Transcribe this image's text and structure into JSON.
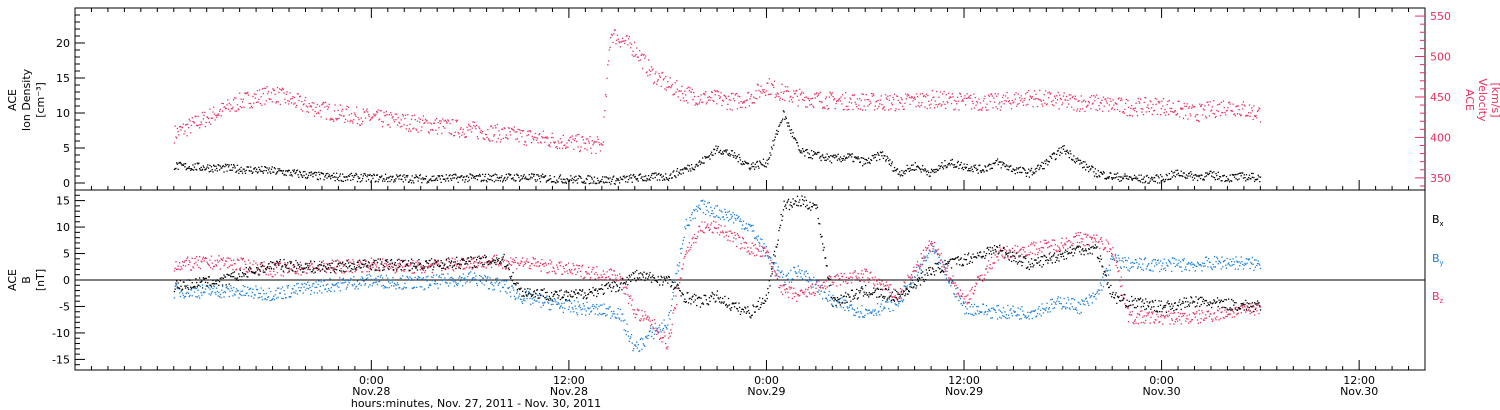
{
  "chart_data": [
    {
      "type": "scatter",
      "panel": "top",
      "ylabel_lines": [
        "ACE",
        "Ion Density",
        "[cm⁻³]"
      ],
      "ylim": [
        -1,
        25
      ],
      "yticks": [
        0,
        5,
        10,
        15,
        20
      ],
      "y2label_lines": [
        "ACE",
        "Velocity",
        "[km/s]"
      ],
      "y2lim": [
        335,
        560
      ],
      "y2ticks": [
        350,
        400,
        450,
        500,
        550
      ],
      "series": [
        {
          "name": "Ion Density",
          "axis": "left",
          "color": "#000000",
          "x": [
            0,
            6,
            12,
            18,
            24,
            30,
            36,
            42,
            48,
            54,
            56,
            60,
            64,
            66,
            68,
            70,
            72,
            74,
            76,
            78,
            80,
            82,
            84,
            86,
            88,
            90,
            92,
            94,
            96,
            98,
            100,
            102,
            104,
            106,
            108,
            110,
            112,
            114,
            116,
            118,
            120,
            122,
            124,
            126,
            128,
            130,
            132
          ],
          "y": [
            2.5,
            2.2,
            1.8,
            1.0,
            0.8,
            0.7,
            0.8,
            0.9,
            0.6,
            0.5,
            0.8,
            1.0,
            3.0,
            5.0,
            4.0,
            2.5,
            3.0,
            10.0,
            4.5,
            4.0,
            3.5,
            3.8,
            3.0,
            4.2,
            1.5,
            2.5,
            1.5,
            3.0,
            2.5,
            2.0,
            3.0,
            2.0,
            1.5,
            3.0,
            5.0,
            3.0,
            1.5,
            1.0,
            0.8,
            0.6,
            0.7,
            1.5,
            1.0,
            1.2,
            0.8,
            1.0,
            0.8
          ]
        },
        {
          "name": "Velocity",
          "axis": "right",
          "color": "#e8305e",
          "x": [
            0,
            4,
            8,
            12,
            16,
            20,
            24,
            28,
            32,
            36,
            40,
            44,
            48,
            52,
            53,
            56,
            58,
            60,
            62,
            64,
            66,
            68,
            70,
            72,
            74,
            76,
            78,
            80,
            84,
            88,
            92,
            96,
            100,
            104,
            108,
            112,
            116,
            120,
            124,
            128,
            132
          ],
          "y": [
            405,
            425,
            445,
            455,
            440,
            430,
            425,
            420,
            415,
            410,
            405,
            400,
            395,
            390,
            530,
            510,
            480,
            465,
            455,
            450,
            448,
            445,
            450,
            465,
            455,
            450,
            448,
            446,
            445,
            444,
            448,
            445,
            444,
            450,
            445,
            443,
            438,
            440,
            430,
            440,
            430
          ]
        }
      ]
    },
    {
      "type": "scatter",
      "panel": "bottom",
      "ylabel_lines": [
        "ACE",
        "B",
        "[nT]"
      ],
      "ylim": [
        -17,
        17
      ],
      "yticks": [
        -15,
        -10,
        -5,
        0,
        5,
        10,
        15
      ],
      "zero_line": true,
      "series": [
        {
          "name": "Bx",
          "color": "#000000",
          "x": [
            0,
            6,
            12,
            18,
            24,
            30,
            36,
            40,
            42,
            48,
            54,
            56,
            60,
            62,
            64,
            66,
            68,
            70,
            72,
            74,
            76,
            78,
            80,
            82,
            84,
            88,
            92,
            96,
            100,
            104,
            108,
            110,
            112,
            114,
            116,
            118,
            120,
            124,
            128,
            132
          ],
          "y": [
            -1,
            0,
            3,
            2.5,
            3,
            3,
            3.5,
            4,
            -2,
            -3,
            -1,
            1,
            0,
            -3,
            -4,
            -3,
            -5,
            -6,
            -3,
            14,
            15,
            14,
            -4,
            -3,
            -2,
            -3,
            2,
            4,
            6,
            3,
            5,
            6,
            6,
            -3,
            -4,
            -4.5,
            -5,
            -4,
            -4.5,
            -5
          ]
        },
        {
          "name": "By",
          "color": "#1a7fdb",
          "x": [
            0,
            6,
            12,
            18,
            24,
            30,
            36,
            40,
            42,
            48,
            54,
            56,
            58,
            60,
            62,
            64,
            66,
            68,
            70,
            72,
            74,
            76,
            80,
            84,
            88,
            92,
            96,
            100,
            104,
            108,
            110,
            112,
            114,
            116,
            120,
            124,
            128,
            132
          ],
          "y": [
            -2,
            -2,
            -2.5,
            -1,
            0,
            -0.5,
            0.5,
            -1,
            -3,
            -5,
            -6,
            -13,
            -10,
            -8,
            10,
            14,
            13,
            12,
            10,
            5,
            0,
            2,
            -4,
            -6,
            -4,
            6,
            -5,
            -6,
            -6,
            -4,
            -5,
            -3,
            4,
            3,
            3,
            3,
            3.5,
            3
          ],
          "annotate": false
        },
        {
          "name": "Bz",
          "color": "#e8305e",
          "x": [
            0,
            6,
            12,
            18,
            24,
            30,
            36,
            40,
            42,
            48,
            54,
            56,
            58,
            60,
            62,
            64,
            66,
            68,
            70,
            72,
            74,
            76,
            80,
            84,
            88,
            92,
            96,
            100,
            104,
            108,
            110,
            112,
            114,
            116,
            120,
            124,
            128,
            132
          ],
          "y": [
            3,
            3.5,
            2,
            2.5,
            3,
            2.5,
            3.5,
            3.5,
            3.5,
            2,
            1,
            -6,
            -8,
            -12,
            5,
            10,
            10,
            8,
            6,
            5,
            -2,
            -3,
            0,
            1,
            -3,
            7,
            -4,
            5,
            6,
            7,
            8,
            7.5,
            6,
            -7,
            -7,
            -7,
            -6,
            -5
          ]
        }
      ]
    }
  ],
  "legend": {
    "bx_base": "B",
    "bx_sub": "x",
    "by_base": "B",
    "by_sub": "y",
    "bz_base": "B",
    "bz_sub": "z"
  },
  "x_axis": {
    "range_hours": [
      -12,
      152
    ],
    "ticks": [
      {
        "h": 24,
        "time": "0:00",
        "date": "Nov.28"
      },
      {
        "h": 48,
        "time": "12:00",
        "date": "Nov.28"
      },
      {
        "h": 72,
        "time": "0:00",
        "date": "Nov.29"
      },
      {
        "h": 96,
        "time": "12:00",
        "date": "Nov.29"
      },
      {
        "h": 120,
        "time": "0:00",
        "date": "Nov.30"
      },
      {
        "h": 144,
        "time": "12:00",
        "date": "Nov.30"
      }
    ],
    "label": "hours:minutes, Nov. 27, 2011 - Nov. 30, 2011"
  }
}
